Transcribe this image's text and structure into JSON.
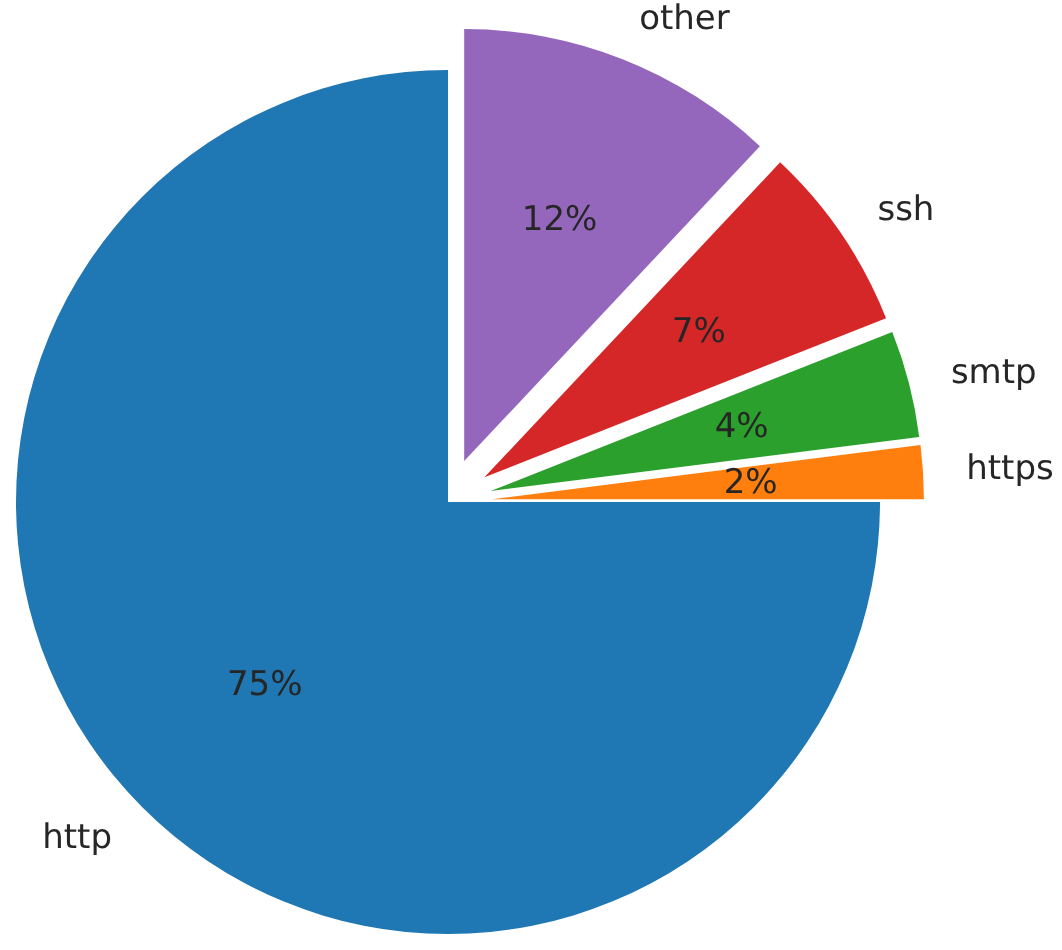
{
  "chart_data": {
    "type": "pie",
    "categories": [
      "http",
      "https",
      "smtp",
      "ssh",
      "other"
    ],
    "values": [
      75,
      2,
      4,
      7,
      12
    ],
    "colors": [
      "#1f77b4",
      "#ff7f0e",
      "#2ca02c",
      "#d62728",
      "#9467bd"
    ],
    "value_labels": [
      "75%",
      "2%",
      "4%",
      "7%",
      "12%"
    ]
  }
}
